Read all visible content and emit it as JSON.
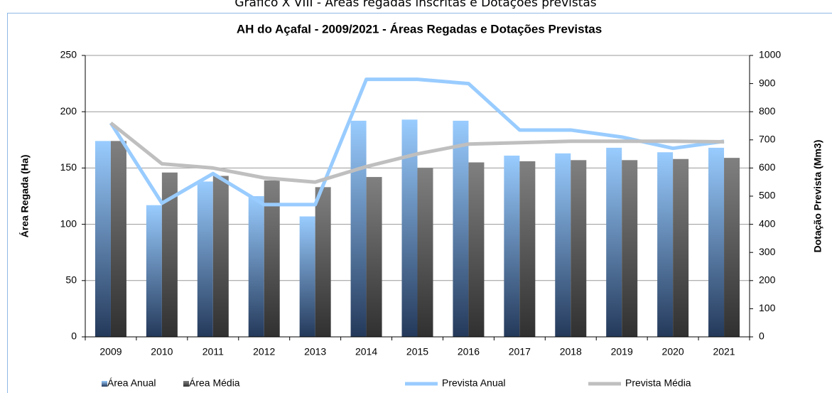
{
  "caption": "Gráfico X VIII - Áreas regadas inscritas e Dotações previstas",
  "chart_data": {
    "type": "bar-line",
    "title": "AH do Açafal - 2009/2021 - Áreas Regadas e Dotações Previstas",
    "ylabel": "Área Regada (Ha)",
    "y2label": "Dotação Prevista (Mm3)",
    "categories": [
      "2009",
      "2010",
      "2011",
      "2012",
      "2013",
      "2014",
      "2015",
      "2016",
      "2017",
      "2018",
      "2019",
      "2020",
      "2021"
    ],
    "series": [
      {
        "name": "Área Anual",
        "type": "bar",
        "color": "#99ccff",
        "values": [
          174,
          117,
          138,
          125,
          107,
          192,
          193,
          192,
          161,
          163,
          168,
          164,
          168
        ]
      },
      {
        "name": "Área Média",
        "type": "bar",
        "color": "#808080",
        "values": [
          174,
          146,
          143,
          139,
          133,
          142,
          150,
          155,
          156,
          157,
          157,
          158,
          159
        ]
      },
      {
        "name": "Prevista Anual",
        "type": "line",
        "axis": "y2",
        "color": "#99ccff",
        "values": [
          760,
          475,
          580,
          470,
          470,
          915,
          915,
          900,
          735,
          735,
          710,
          670,
          695
        ]
      },
      {
        "name": "Prevista Média",
        "type": "line",
        "axis": "y2",
        "color": "#bfbfbf",
        "values": [
          760,
          615,
          600,
          565,
          550,
          605,
          650,
          685,
          690,
          695,
          695,
          695,
          693
        ]
      }
    ],
    "ylim": [
      0,
      250
    ],
    "yticks": [
      0,
      50,
      100,
      150,
      200,
      250
    ],
    "y2lim": [
      0,
      1000
    ],
    "y2ticks": [
      0,
      100,
      200,
      300,
      400,
      500,
      600,
      700,
      800,
      900,
      1000
    ],
    "grid": true,
    "legend": "bottom"
  }
}
